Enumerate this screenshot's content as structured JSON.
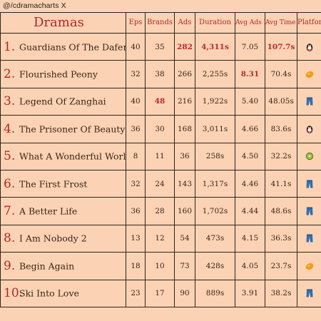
{
  "handle": "@/cdramacharts X",
  "chart_data": {
    "type": "table",
    "columns": [
      "Dramas",
      "Eps",
      "Brands",
      "Ads",
      "Duration",
      "Avg Ads Per Ep",
      "Avg Time Per Ep",
      "Platform"
    ],
    "rows": [
      {
        "rank": "1.",
        "title": "Guardians Of The Dafeng",
        "eps": "40",
        "brands": "35",
        "ads": "282",
        "duration": "4,311s",
        "avg_ads": "7.05",
        "avg_time": "107.7s",
        "platform": "penguin-icon",
        "hl": [
          "ads",
          "duration",
          "avg_time"
        ]
      },
      {
        "rank": "2.",
        "title": "Flourished Peony",
        "eps": "32",
        "brands": "38",
        "ads": "266",
        "duration": "2,255s",
        "avg_ads": "8.31",
        "avg_time": "70.4s",
        "platform": "mango-icon",
        "hl": [
          "avg_ads"
        ]
      },
      {
        "rank": "3.",
        "title": "Legend Of Zanghai",
        "eps": "40",
        "brands": "48",
        "ads": "216",
        "duration": "1,922s",
        "avg_ads": "5.40",
        "avg_time": "48.05s",
        "platform": "jeans-icon",
        "hl": [
          "brands"
        ]
      },
      {
        "rank": "4.",
        "title": "The Prisoner Of Beauty",
        "eps": "36",
        "brands": "30",
        "ads": "168",
        "duration": "3,011s",
        "avg_ads": "4.66",
        "avg_time": "83.6s",
        "platform": "penguin-icon",
        "hl": []
      },
      {
        "rank": "5.",
        "title": "What A Wonderful World",
        "eps": "8",
        "brands": "11",
        "ads": "36",
        "duration": "258s",
        "avg_ads": "4.50",
        "avg_time": "32.2s",
        "platform": "kiwi-icon",
        "hl": []
      },
      {
        "rank": "6.",
        "title": "The First Frost",
        "eps": "32",
        "brands": "24",
        "ads": "143",
        "duration": "1,317s",
        "avg_ads": "4.46",
        "avg_time": "41.1s",
        "platform": "jeans-icon",
        "hl": []
      },
      {
        "rank": "7.",
        "title": "A Better Life",
        "eps": "36",
        "brands": "28",
        "ads": "160",
        "duration": "1,702s",
        "avg_ads": "4.44",
        "avg_time": "48.6s",
        "platform": "jeans-icon",
        "hl": []
      },
      {
        "rank": "8.",
        "title": "I Am Nobody 2",
        "eps": "13",
        "brands": "12",
        "ads": "54",
        "duration": "473s",
        "avg_ads": "4.15",
        "avg_time": "36.3s",
        "platform": "jeans-icon",
        "hl": []
      },
      {
        "rank": "9.",
        "title": "Begin Again",
        "eps": "18",
        "brands": "10",
        "ads": "73",
        "duration": "428s",
        "avg_ads": "4.05",
        "avg_time": "23.7s",
        "platform": "mango-icon",
        "hl": []
      },
      {
        "rank": "10.",
        "title": "Ski Into Love",
        "eps": "23",
        "brands": "17",
        "ads": "90",
        "duration": "889s",
        "avg_ads": "3.91",
        "avg_time": "38.2s",
        "platform": "jeans-icon",
        "hl": []
      }
    ]
  },
  "colors": {
    "background": "#fbd3b4",
    "header_text": "#b3262b",
    "highlight": "#c0262d",
    "grid": "#2f241d"
  }
}
